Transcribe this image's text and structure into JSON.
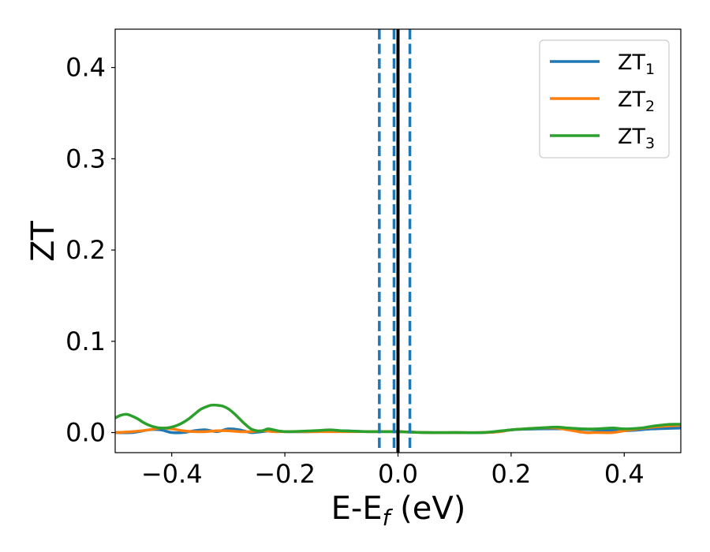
{
  "chart_data": {
    "type": "line",
    "xlabel_main": "E-E",
    "xlabel_sub": "f",
    "xlabel_unit": " (eV)",
    "ylabel": "ZT",
    "xlim": [
      -0.5,
      0.5
    ],
    "ylim": [
      -0.022,
      0.442
    ],
    "xticks": [
      -0.4,
      -0.2,
      0.0,
      0.2,
      0.4
    ],
    "xtick_labels": [
      "−0.4",
      "−0.2",
      "0.0",
      "0.2",
      "0.4"
    ],
    "yticks": [
      0.0,
      0.1,
      0.2,
      0.3,
      0.4
    ],
    "ytick_labels": [
      "0.0",
      "0.1",
      "0.2",
      "0.3",
      "0.4"
    ],
    "grid": false,
    "legend_position": "top-right",
    "vertical_lines": [
      {
        "x": 0.0,
        "style": "solid",
        "color": "#000000"
      },
      {
        "x": -0.033,
        "style": "dashed",
        "color": "#1f77b4"
      },
      {
        "x": -0.007,
        "style": "dashed",
        "color": "#1f77b4"
      },
      {
        "x": 0.021,
        "style": "dashed",
        "color": "#1f77b4"
      }
    ],
    "series": [
      {
        "name_main": "ZT",
        "name_sub": "1",
        "color": "#1f77b4",
        "x": [
          -0.5,
          -0.47,
          -0.44,
          -0.42,
          -0.4,
          -0.38,
          -0.36,
          -0.34,
          -0.32,
          -0.3,
          -0.28,
          -0.26,
          -0.24,
          -0.22,
          -0.2,
          -0.15,
          -0.1,
          -0.05,
          0.0,
          0.05,
          0.1,
          0.15,
          0.18,
          0.2,
          0.25,
          0.3,
          0.35,
          0.4,
          0.45,
          0.5
        ],
        "y": [
          0.0,
          0.0,
          0.003,
          0.003,
          0.0,
          0.0,
          0.002,
          0.003,
          0.001,
          0.004,
          0.003,
          0.0,
          0.001,
          0.002,
          0.001,
          0.001,
          0.002,
          0.001,
          0.001,
          0.0,
          0.0,
          0.0,
          0.001,
          0.003,
          0.004,
          0.004,
          0.003,
          0.002,
          0.004,
          0.005
        ]
      },
      {
        "name_main": "ZT",
        "name_sub": "2",
        "color": "#ff7f0e",
        "x": [
          -0.5,
          -0.47,
          -0.44,
          -0.42,
          -0.4,
          -0.38,
          -0.36,
          -0.34,
          -0.32,
          -0.3,
          -0.28,
          -0.26,
          -0.24,
          -0.22,
          -0.2,
          -0.15,
          -0.1,
          -0.05,
          0.0,
          0.05,
          0.1,
          0.15,
          0.18,
          0.2,
          0.25,
          0.28,
          0.3,
          0.33,
          0.35,
          0.38,
          0.4,
          0.45,
          0.5
        ],
        "y": [
          0.0,
          0.001,
          0.003,
          0.005,
          0.004,
          0.002,
          0.001,
          0.001,
          0.002,
          0.002,
          0.001,
          0.001,
          0.002,
          0.001,
          0.001,
          0.001,
          0.001,
          0.001,
          0.001,
          0.0,
          0.0,
          0.0,
          0.001,
          0.003,
          0.005,
          0.005,
          0.003,
          0.0,
          0.0,
          0.0,
          0.002,
          0.006,
          0.008
        ]
      },
      {
        "name_main": "ZT",
        "name_sub": "3",
        "color": "#2ca02c",
        "x": [
          -0.5,
          -0.49,
          -0.48,
          -0.47,
          -0.46,
          -0.45,
          -0.44,
          -0.43,
          -0.42,
          -0.41,
          -0.4,
          -0.39,
          -0.38,
          -0.37,
          -0.36,
          -0.35,
          -0.34,
          -0.33,
          -0.32,
          -0.31,
          -0.3,
          -0.29,
          -0.28,
          -0.27,
          -0.26,
          -0.25,
          -0.24,
          -0.23,
          -0.22,
          -0.2,
          -0.15,
          -0.12,
          -0.1,
          -0.05,
          0.0,
          0.05,
          0.1,
          0.15,
          0.2,
          0.25,
          0.28,
          0.3,
          0.33,
          0.35,
          0.38,
          0.4,
          0.43,
          0.45,
          0.48,
          0.5
        ],
        "y": [
          0.016,
          0.019,
          0.02,
          0.018,
          0.015,
          0.011,
          0.008,
          0.006,
          0.005,
          0.005,
          0.006,
          0.008,
          0.011,
          0.015,
          0.02,
          0.025,
          0.028,
          0.03,
          0.03,
          0.029,
          0.026,
          0.021,
          0.015,
          0.009,
          0.004,
          0.002,
          0.002,
          0.004,
          0.003,
          0.001,
          0.002,
          0.003,
          0.002,
          0.001,
          0.001,
          0.0,
          0.0,
          0.0,
          0.003,
          0.005,
          0.006,
          0.005,
          0.004,
          0.004,
          0.005,
          0.004,
          0.005,
          0.007,
          0.009,
          0.009
        ]
      }
    ]
  }
}
